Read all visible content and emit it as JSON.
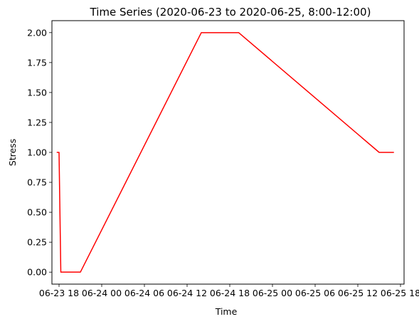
{
  "chart_data": {
    "type": "line",
    "title": "Time Series (2020-06-23 to 2020-06-25, 8:00-12:00)",
    "xlabel": "Time",
    "ylabel": "Stress",
    "grid": false,
    "legend": "none",
    "x_range": [
      "2020-06-23 17:00",
      "2020-06-25 18:30"
    ],
    "y_range": [
      -0.1,
      2.1
    ],
    "x_ticks": [
      {
        "value": "2020-06-23 18:00",
        "label": "06-23 18"
      },
      {
        "value": "2020-06-24 00:00",
        "label": "06-24 00"
      },
      {
        "value": "2020-06-24 06:00",
        "label": "06-24 06"
      },
      {
        "value": "2020-06-24 12:00",
        "label": "06-24 12"
      },
      {
        "value": "2020-06-24 18:00",
        "label": "06-24 18"
      },
      {
        "value": "2020-06-25 00:00",
        "label": "06-25 00"
      },
      {
        "value": "2020-06-25 06:00",
        "label": "06-25 06"
      },
      {
        "value": "2020-06-25 12:00",
        "label": "06-25 12"
      },
      {
        "value": "2020-06-25 18:00",
        "label": "06-25 18"
      }
    ],
    "y_ticks": [
      {
        "value": 0.0,
        "label": "0.00"
      },
      {
        "value": 0.25,
        "label": "0.25"
      },
      {
        "value": 0.5,
        "label": "0.50"
      },
      {
        "value": 0.75,
        "label": "0.75"
      },
      {
        "value": 1.0,
        "label": "1.00"
      },
      {
        "value": 1.25,
        "label": "1.25"
      },
      {
        "value": 1.5,
        "label": "1.50"
      },
      {
        "value": 1.75,
        "label": "1.75"
      },
      {
        "value": 2.0,
        "label": "2.00"
      }
    ],
    "series": [
      {
        "color": "#ff0000",
        "x": [
          "2020-06-23 17:45",
          "2020-06-23 18:00",
          "2020-06-23 18:15",
          "2020-06-23 21:00",
          "2020-06-24 14:00",
          "2020-06-24 19:15",
          "2020-06-25 15:00",
          "2020-06-25 17:00"
        ],
        "y": [
          1.0,
          1.0,
          0.0,
          0.0,
          2.0,
          2.0,
          1.0,
          1.0
        ]
      }
    ]
  }
}
